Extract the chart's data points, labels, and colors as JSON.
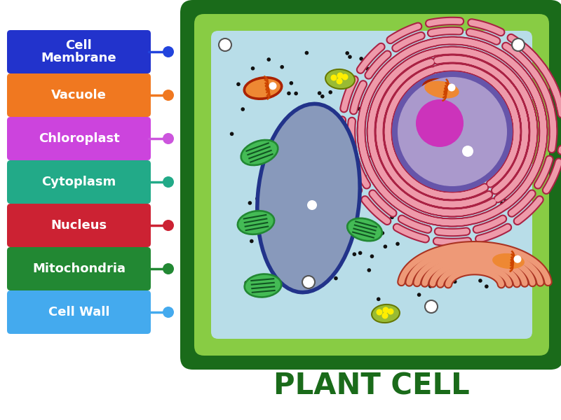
{
  "title": "PLANT CELL",
  "title_color": "#1a6b1a",
  "title_fontsize": 30,
  "bg_color": "#ffffff",
  "labels": [
    {
      "text": "Cell\nMembrane",
      "color": "#2233cc",
      "dot_color": "#2244dd"
    },
    {
      "text": "Vacuole",
      "color": "#f07820",
      "dot_color": "#f07820"
    },
    {
      "text": "Chloroplast",
      "color": "#cc44dd",
      "dot_color": "#cc55dd"
    },
    {
      "text": "Cytoplasm",
      "color": "#22aa88",
      "dot_color": "#22aa88"
    },
    {
      "text": "Nucleus",
      "color": "#cc2233",
      "dot_color": "#cc2233"
    },
    {
      "text": "Mitochondria",
      "color": "#228833",
      "dot_color": "#228833"
    },
    {
      "text": "Cell Wall",
      "color": "#44aaee",
      "dot_color": "#44aaee"
    }
  ],
  "cell_wall_outer_color": "#1a6b1a",
  "cell_wall_mid_color": "#88cc44",
  "cytoplasm_color": "#b8dde8",
  "vacuole_fill": "#8899bb",
  "vacuole_border": "#22338a",
  "nucleus_fill": "#aa99cc",
  "nucleus_border": "#6655aa",
  "nucleolus_color": "#cc33bb",
  "chloroplast_outer": "#228833",
  "chloroplast_inner": "#44bb55",
  "chloroplast_line": "#115522",
  "young_cp_fill": "#99bb33",
  "young_cp_dot": "#ffee00",
  "mito_outer": "#aa2200",
  "mito_inner": "#ee8833",
  "mito_line": "#cc4400",
  "er_fill": "#ee9aaa",
  "er_border": "#aa2244",
  "golgi_fill": "#ee9977",
  "golgi_border": "#aa3322",
  "dot_color": "#111111"
}
